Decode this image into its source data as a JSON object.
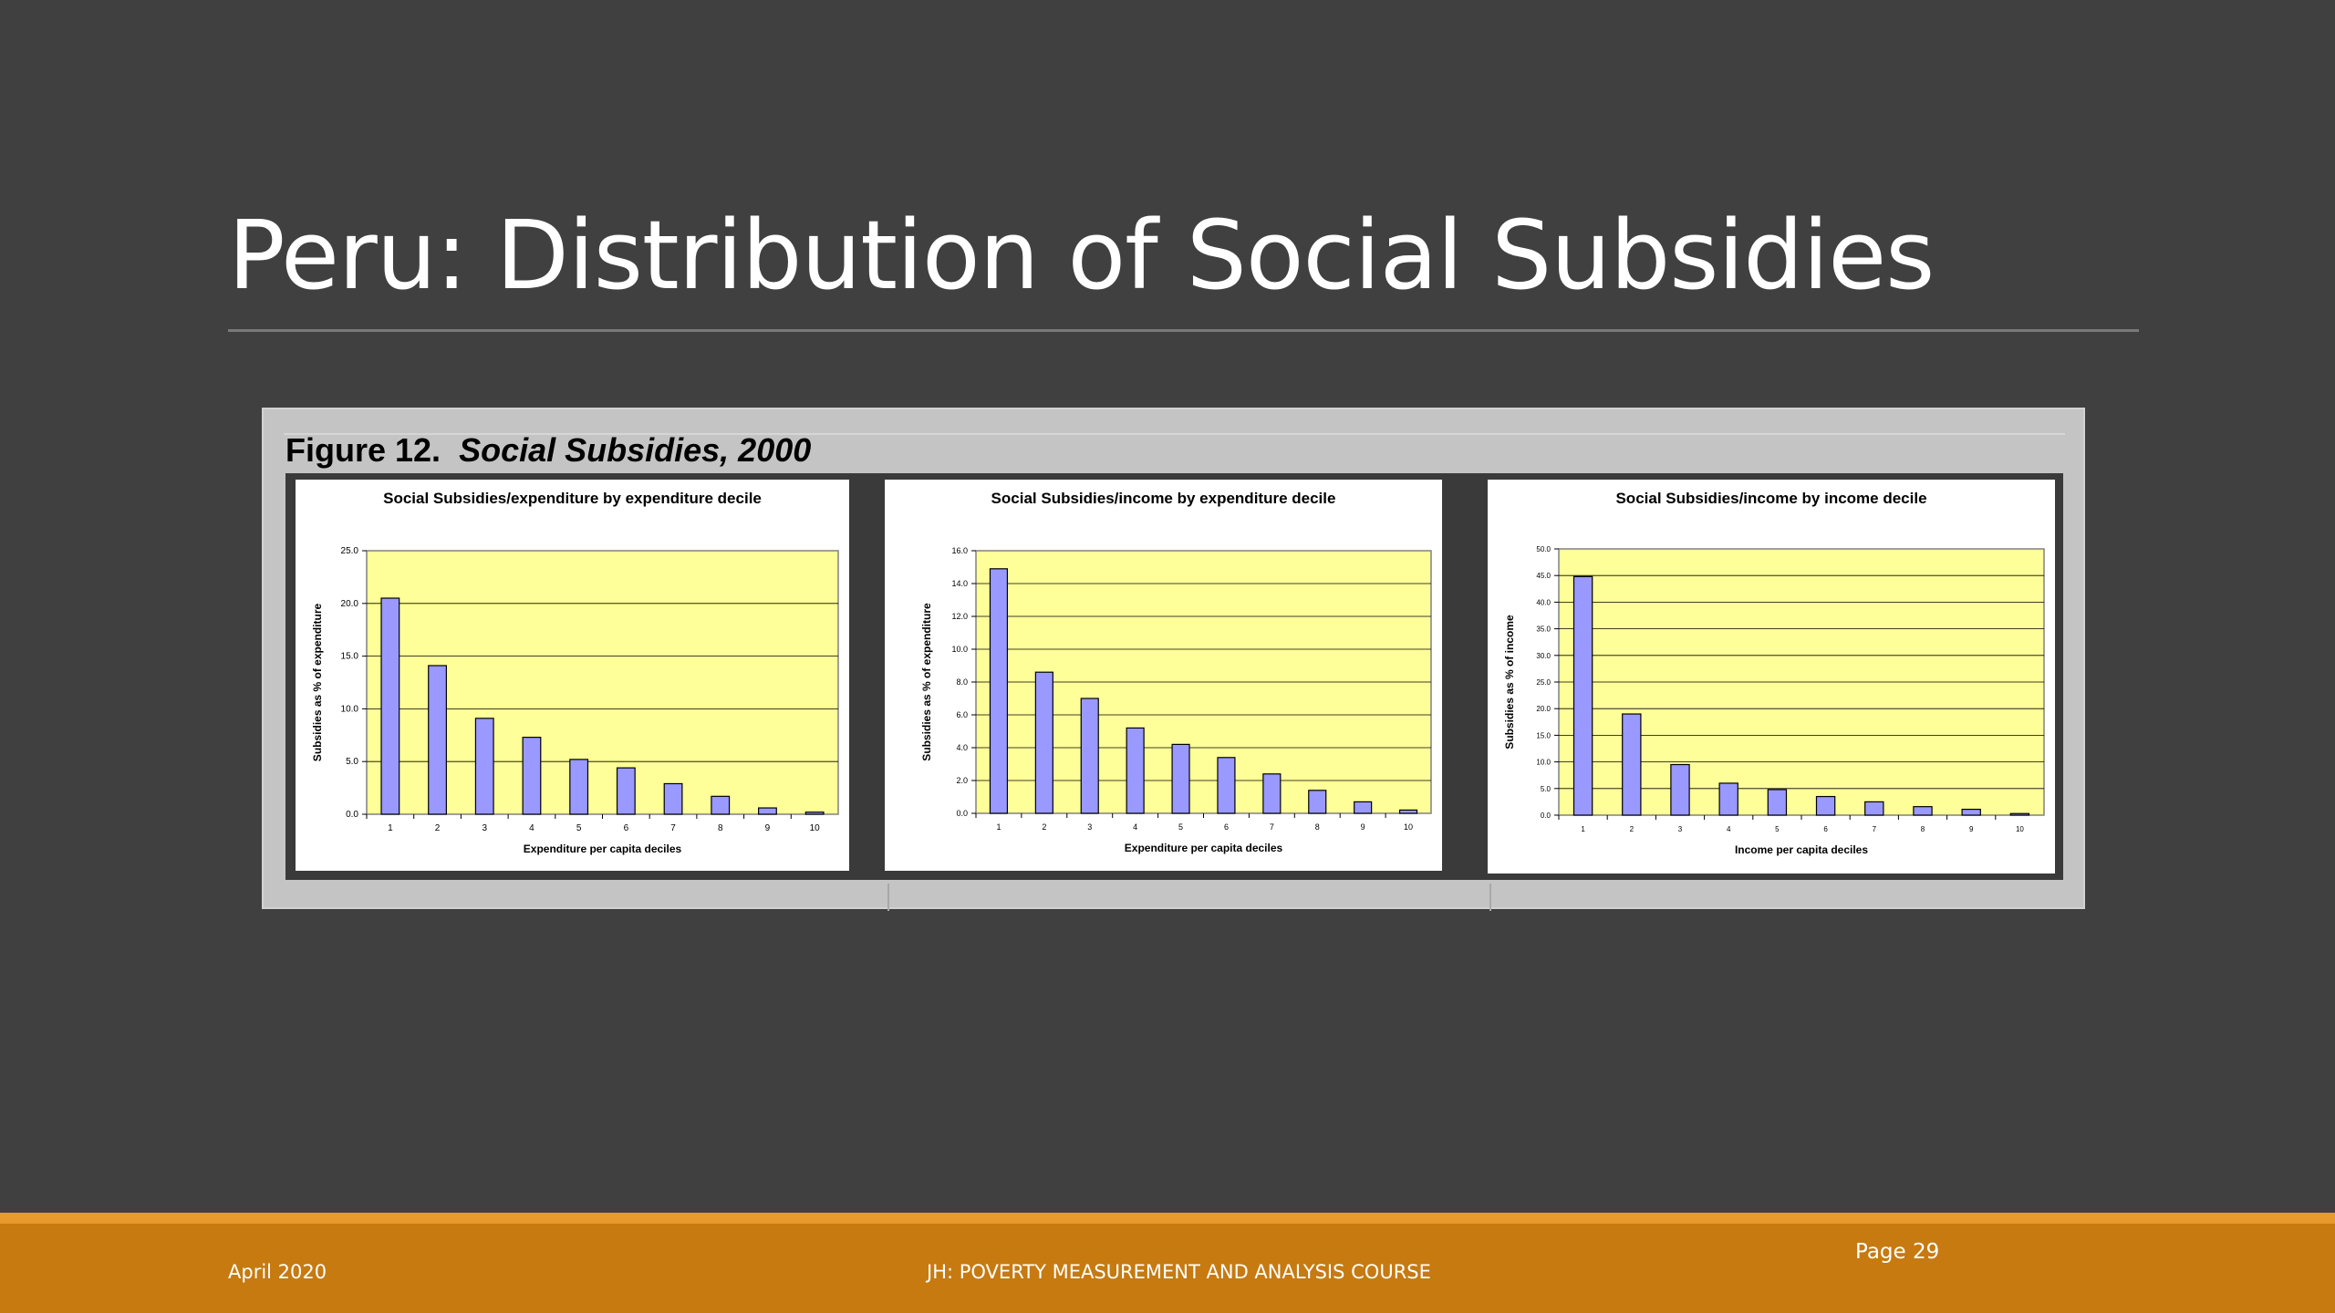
{
  "slide": {
    "title": "Peru: Distribution of Social Subsidies"
  },
  "figure": {
    "caption_number": "Figure 12.",
    "caption_title": "Social Subsidies, 2000"
  },
  "chart_data": [
    {
      "type": "bar",
      "title": "Social Subsidies/expenditure by expenditure decile",
      "xlabel": "Expenditure per capita deciles",
      "ylabel": "Subsidies as % of expenditure",
      "categories": [
        "1",
        "2",
        "3",
        "4",
        "5",
        "6",
        "7",
        "8",
        "9",
        "10"
      ],
      "values": [
        20.5,
        14.1,
        9.1,
        7.3,
        5.2,
        4.4,
        2.9,
        1.7,
        0.6,
        0.2
      ],
      "ylim": [
        0,
        25
      ],
      "yticks": [
        "0.0",
        "5.0",
        "10.0",
        "15.0",
        "20.0",
        "25.0"
      ],
      "grid": true,
      "plot_color": "#ffff99",
      "bar_color": "#9999ff"
    },
    {
      "type": "bar",
      "title": "Social Subsidies/income by expenditure decile",
      "xlabel": "Expenditure per capita deciles",
      "ylabel": "Subsidies as % of expenditure",
      "categories": [
        "1",
        "2",
        "3",
        "4",
        "5",
        "6",
        "7",
        "8",
        "9",
        "10"
      ],
      "values": [
        14.9,
        8.6,
        7.0,
        5.2,
        4.2,
        3.4,
        2.4,
        1.4,
        0.7,
        0.2
      ],
      "ylim": [
        0,
        16
      ],
      "yticks": [
        "0.0",
        "2.0",
        "4.0",
        "6.0",
        "8.0",
        "10.0",
        "12.0",
        "14.0",
        "16.0"
      ],
      "grid": true,
      "plot_color": "#ffff99",
      "bar_color": "#9999ff"
    },
    {
      "type": "bar",
      "title": "Social Subsidies/income by income decile",
      "xlabel": "Income per capita deciles",
      "ylabel": "Subsidies as % of income",
      "categories": [
        "1",
        "2",
        "3",
        "4",
        "5",
        "6",
        "7",
        "8",
        "9",
        "10"
      ],
      "values": [
        44.8,
        19.0,
        9.5,
        6.0,
        4.8,
        3.5,
        2.5,
        1.6,
        1.1,
        0.3
      ],
      "ylim": [
        0,
        50
      ],
      "yticks": [
        "0.0",
        "5.0",
        "10.0",
        "15.0",
        "20.0",
        "25.0",
        "30.0",
        "35.0",
        "40.0",
        "45.0",
        "50.0"
      ],
      "grid": true,
      "plot_color": "#ffff99",
      "bar_color": "#9999ff"
    }
  ],
  "footer": {
    "date": "April 2020",
    "course": "JH: POVERTY MEASUREMENT AND ANALYSIS COURSE",
    "page": "Page 29"
  }
}
